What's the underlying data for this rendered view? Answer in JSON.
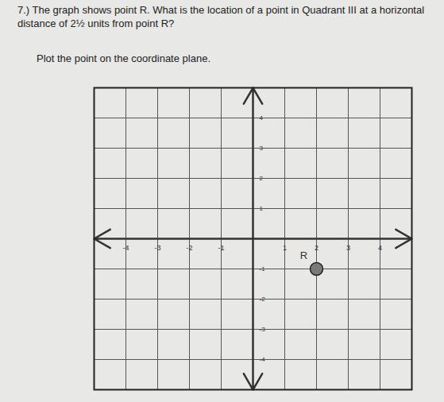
{
  "chart_data": {
    "type": "scatter",
    "title": "7.) The graph shows point R. What is the location of a point in Quadrant III at a horizontal distance of 2½ units from point R?",
    "subtitle": "Plot the point on the coordinate plane.",
    "x": [
      2
    ],
    "y": [
      -1
    ],
    "labels": [
      "R"
    ],
    "color": "#7a7a7a",
    "marker": "circle",
    "xlim": [
      -5,
      5
    ],
    "ylim": [
      -5,
      5
    ],
    "xticks": [
      -4,
      -3,
      -2,
      -1,
      1,
      2,
      3,
      4
    ],
    "yticks": [
      -4,
      -3,
      -2,
      -1,
      1,
      2,
      3,
      4
    ],
    "grid": true
  }
}
